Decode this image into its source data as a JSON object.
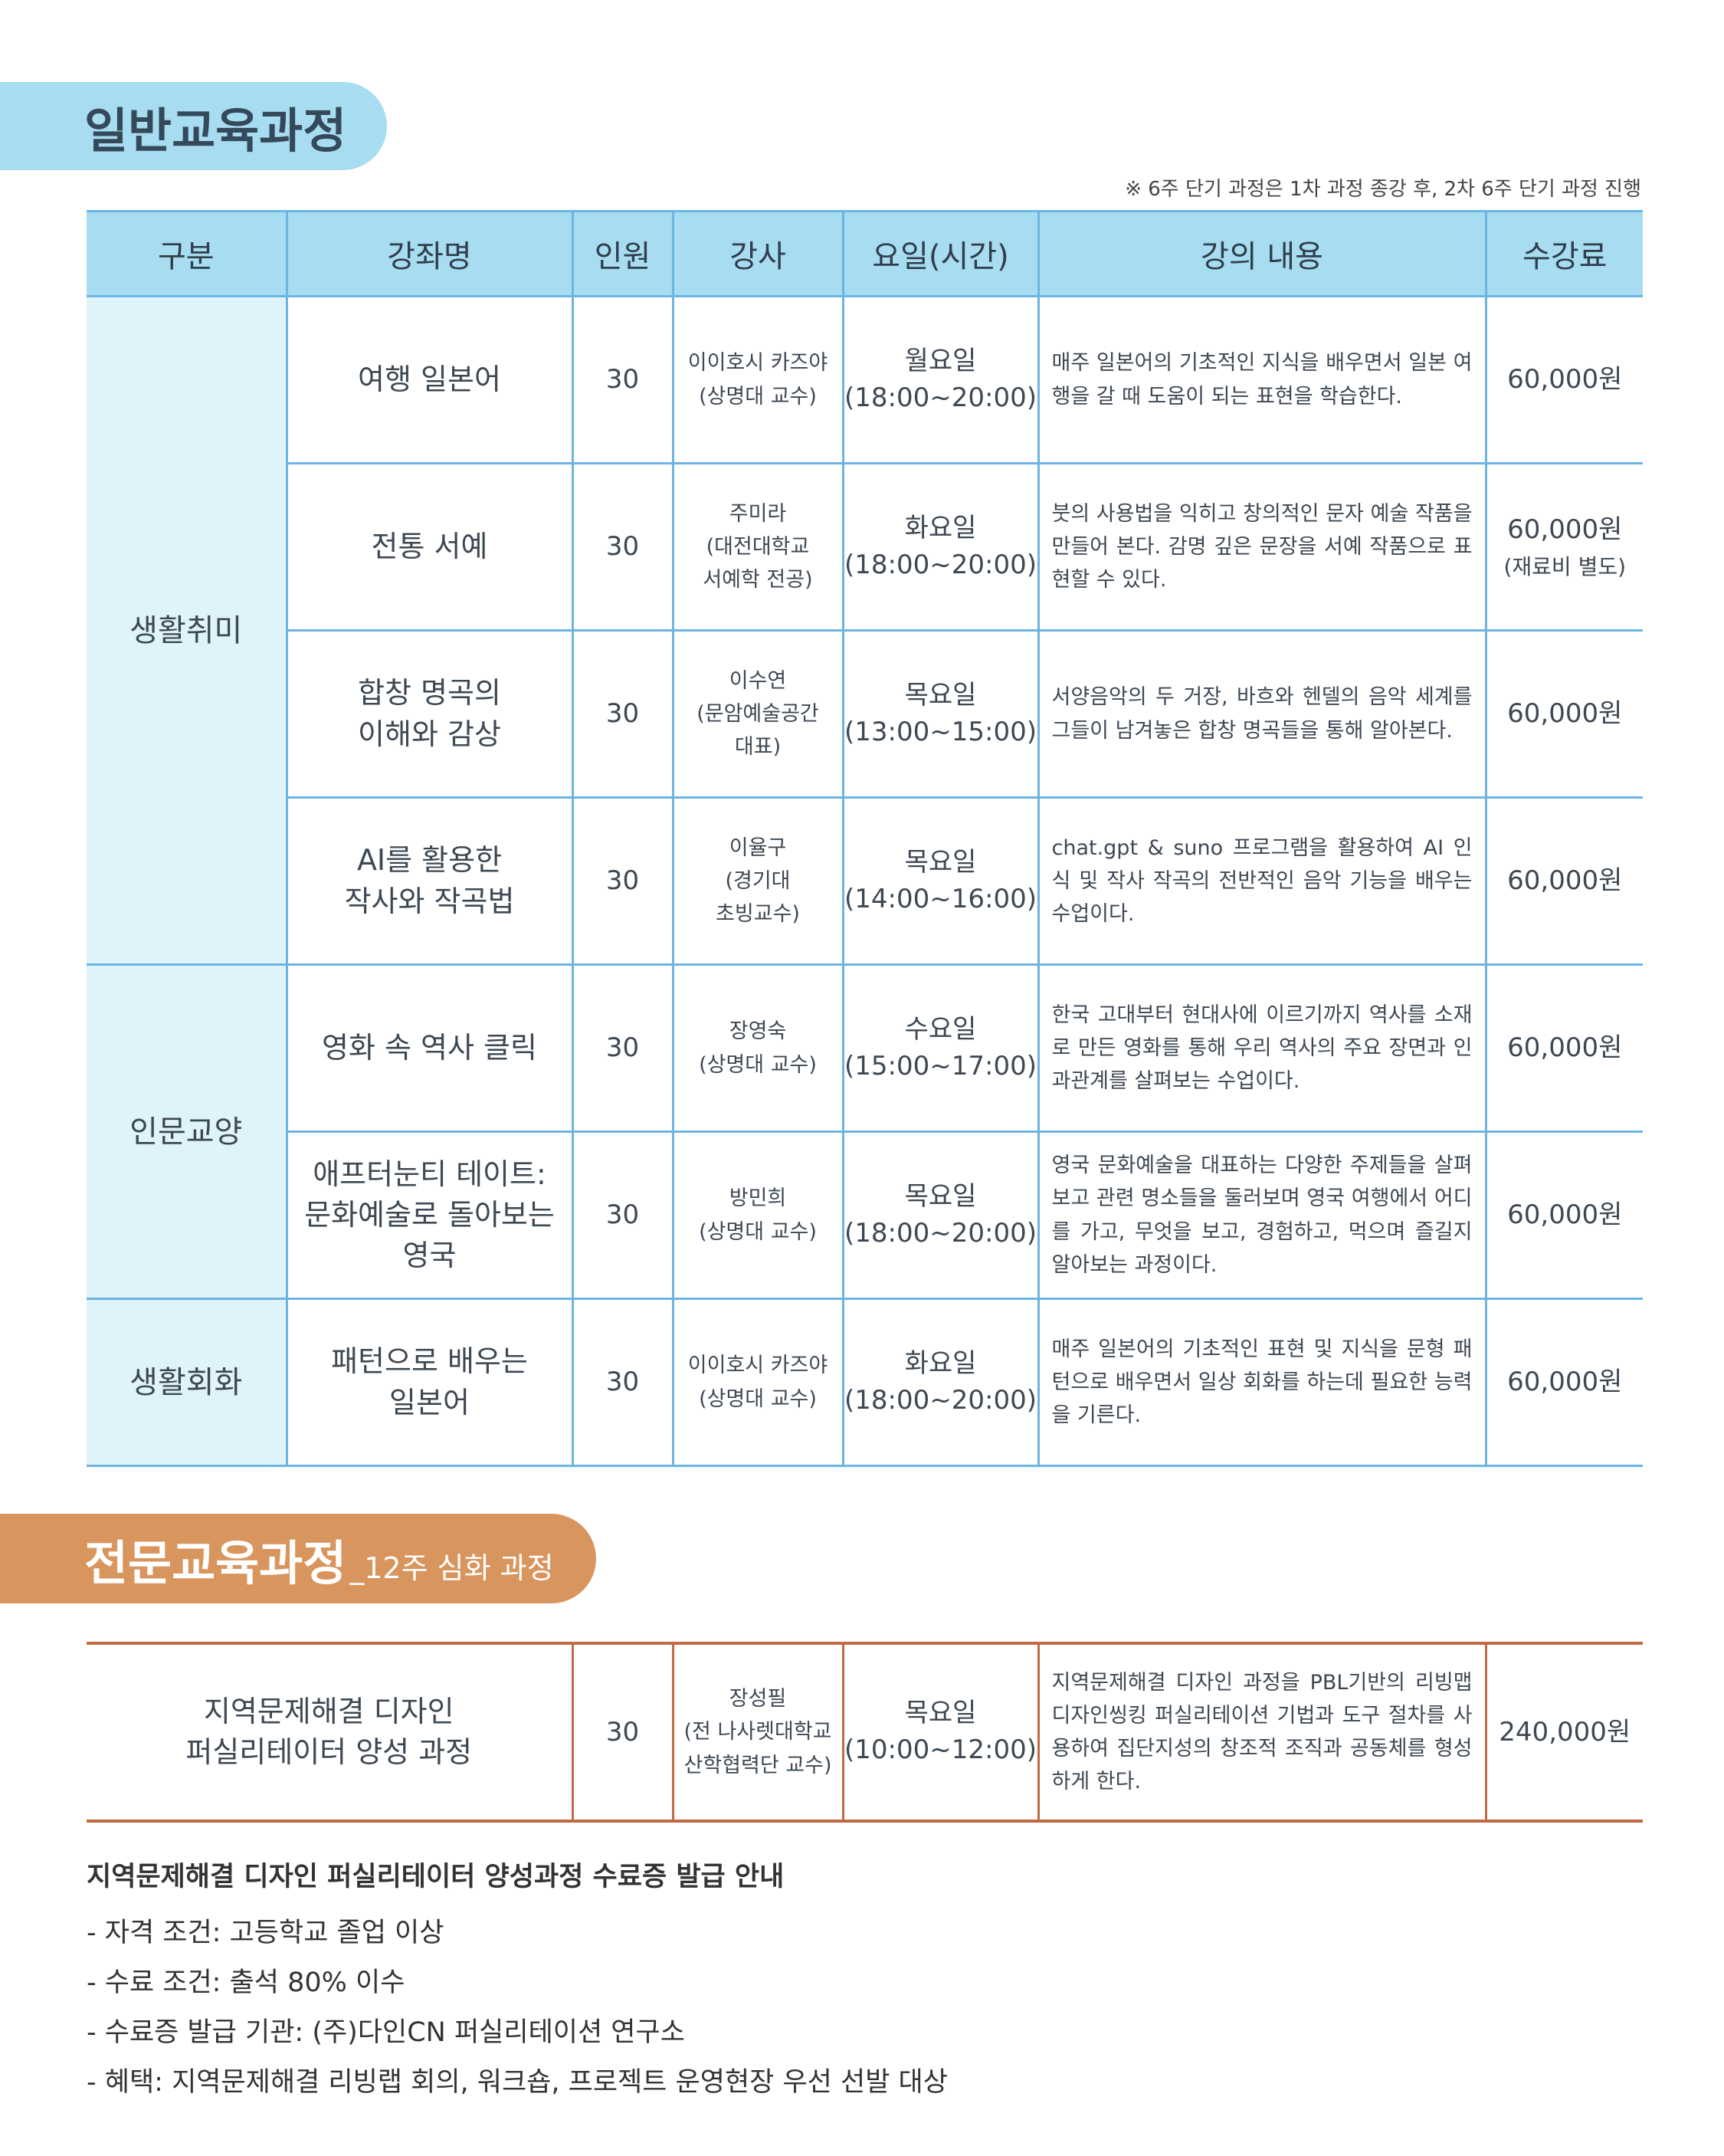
{
  "section1": {
    "title": "일반교육과정",
    "note": "※ 6주 단기 과정은 1차 과정 종강 후, 2차 6주 단기 과정 진행",
    "headers": [
      "구분",
      "강좌명",
      "인원",
      "강사",
      "요일(시간)",
      "강의 내용",
      "수강료"
    ],
    "categories": [
      "생활취미",
      "인문교양",
      "생활회화"
    ],
    "rows": [
      {
        "name": "여행 일본어",
        "count": "30",
        "teacher": "이이호시 카즈야\n(상명대 교수)",
        "time": "월요일\n(18:00~20:00)",
        "desc": "매주 일본어의 기초적인 지식을 배우면서 일본 여행을 갈 때 도움이 되는 표현을 학습한다.",
        "fee": "60,000원"
      },
      {
        "name": "전통 서예",
        "count": "30",
        "teacher": "주미라\n(대전대학교\n서예학 전공)",
        "time": "화요일\n(18:00~20:00)",
        "desc": "붓의 사용법을 익히고 창의적인 문자 예술 작품을 만들어 본다. 감명 깊은 문장을 서예 작품으로 표현할 수 있다.",
        "fee": "60,000원",
        "fee_note": "(재료비 별도)"
      },
      {
        "name": "합창 명곡의\n이해와 감상",
        "count": "30",
        "teacher": "이수연\n(문암예술공간\n대표)",
        "time": "목요일\n(13:00~15:00)",
        "desc": "서양음악의 두 거장, 바흐와 헨델의 음악 세계를 그들이 남겨놓은 합창 명곡들을 통해 알아본다.",
        "fee": "60,000원"
      },
      {
        "name": "AI를 활용한\n작사와 작곡법",
        "count": "30",
        "teacher": "이율구\n(경기대\n초빙교수)",
        "time": "목요일\n(14:00~16:00)",
        "desc": "chat.gpt & suno 프로그램을 활용하여 AI 인식 및 작사 작곡의 전반적인 음악 기능을 배우는 수업이다.",
        "fee": "60,000원"
      },
      {
        "name": "영화 속 역사 클릭",
        "count": "30",
        "teacher": "장영숙\n(상명대 교수)",
        "time": "수요일\n(15:00~17:00)",
        "desc": "한국 고대부터 현대사에 이르기까지 역사를 소재로 만든 영화를 통해 우리 역사의 주요 장면과 인과관계를 살펴보는 수업이다.",
        "fee": "60,000원"
      },
      {
        "name": "애프터눈티 테이트:\n문화예술로 돌아보는\n영국",
        "count": "30",
        "teacher": "방민희\n(상명대 교수)",
        "time": "목요일\n(18:00~20:00)",
        "desc": "영국 문화예술을 대표하는 다양한 주제들을 살펴보고 관련 명소들을 둘러보며 영국 여행에서 어디를 가고, 무엇을 보고, 경험하고, 먹으며 즐길지 알아보는 과정이다.",
        "fee": "60,000원"
      },
      {
        "name": "패턴으로 배우는\n일본어",
        "count": "30",
        "teacher": "이이호시 카즈야\n(상명대 교수)",
        "time": "화요일\n(18:00~20:00)",
        "desc": "매주 일본어의 기초적인 표현 및 지식을 문형 패턴으로 배우면서 일상 회화를 하는데 필요한 능력을 기른다.",
        "fee": "60,000원"
      }
    ]
  },
  "section2": {
    "title": "전문교육과정",
    "subtitle": "_12주 심화 과정",
    "row": {
      "name": "지역문제해결 디자인\n퍼실리테이터 양성 과정",
      "count": "30",
      "teacher": "장성필\n(전 나사렛대학교\n산학협력단 교수)",
      "time": "목요일\n(10:00~12:00)",
      "desc": "지역문제해결 디자인 과정을 PBL기반의 리빙맵 디자인씽킹 퍼실리테이션 기법과 도구 절차를 사용하여 집단지성의 창조적 조직과 공동체를 형성하게 한다.",
      "fee": "240,000원"
    }
  },
  "notes": {
    "heading": "지역문제해결 디자인 퍼실리테이터 양성과정 수료증 발급 안내",
    "items": [
      "-  자격 조건: 고등학교 졸업 이상",
      "-  수료 조건: 출석 80% 이수",
      "-  수료증 발급 기관: (주)다인CN 퍼실리테이션 연구소",
      "-  혜택: 지역문제해결 리빙랩 회의, 워크숍, 프로젝트 운영현장 우선 선발 대상"
    ]
  },
  "colors": {
    "blue_header": "#a7dcf1",
    "blue_border": "#6cb4e2",
    "category_bg": "#dff3fa",
    "orange": "#d9955e",
    "orange_border": "#c06a42"
  }
}
